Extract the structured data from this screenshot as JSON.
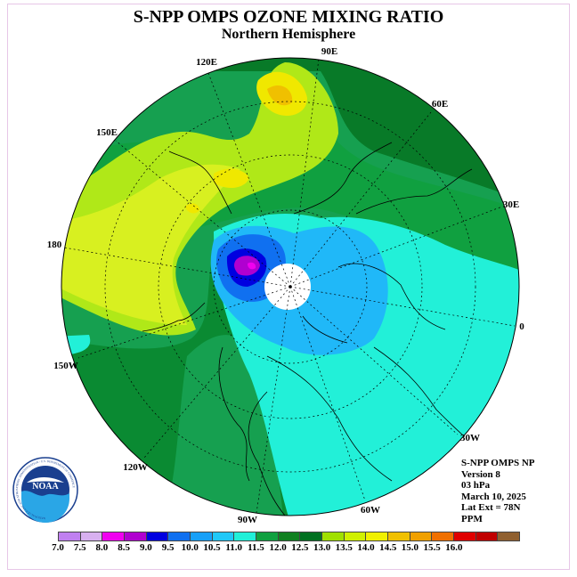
{
  "title": "S-NPP OMPS OZONE MIXING RATIO",
  "subtitle": "Northern Hemisphere",
  "longitude_labels": [
    "90E",
    "60E",
    "30E",
    "0",
    "30W",
    "60W",
    "90W",
    "120W",
    "150W",
    "180",
    "150E",
    "120E"
  ],
  "info": {
    "line1": "S-NPP OMPS NP",
    "line2": "Version 8",
    "line3": "03 hPa",
    "line4": "March 10, 2025",
    "line5": "Lat Ext = 78N",
    "line6": "PPM"
  },
  "logo": {
    "text": "NOAA",
    "ring_text": "NATIONAL OCEANIC AND ATMOSPHERIC ADMINISTRATION - U.S. DEPARTMENT OF COMMERCE"
  },
  "colorbar": {
    "colors": [
      "#c080f0",
      "#d8b0f0",
      "#f000f0",
      "#b000d0",
      "#0000e0",
      "#1070f0",
      "#18a0f8",
      "#20c8f8",
      "#20f0d8",
      "#10a040",
      "#108020",
      "#007020",
      "#a0e000",
      "#d0f000",
      "#f0f000",
      "#f0c000",
      "#f0a000",
      "#f07000",
      "#e00000",
      "#c00000",
      "#906030"
    ],
    "ticks": [
      "7.0",
      "7.5",
      "8.0",
      "8.5",
      "9.0",
      "9.5",
      "10.0",
      "10.5",
      "11.0",
      "11.5",
      "12.0",
      "12.5",
      "13.0",
      "13.5",
      "14.0",
      "14.5",
      "15.0",
      "15.5",
      "16.0"
    ]
  }
}
